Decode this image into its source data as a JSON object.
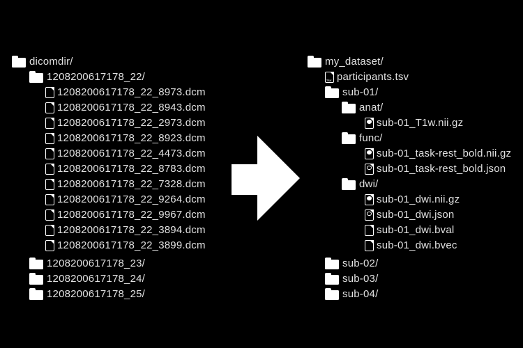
{
  "diagram": {
    "description": "dicom-to-bids-conversion",
    "background_color": "#000000",
    "text_color": "#e0e0e0",
    "icon_color": "#ffffff",
    "arrow": {
      "direction": "right",
      "color": "#ffffff"
    }
  },
  "icons": {
    "tsv_label": "TSV"
  },
  "left_tree": {
    "rows": [
      {
        "label": "dicomdir/",
        "type": "folder",
        "level": 0
      },
      {
        "label": "1208200617178_22/",
        "type": "folder",
        "level": 1
      },
      {
        "label": "1208200617178_22_8973.dcm",
        "type": "file",
        "level": 2
      },
      {
        "label": "1208200617178_22_8943.dcm",
        "type": "file",
        "level": 2
      },
      {
        "label": "1208200617178_22_2973.dcm",
        "type": "file",
        "level": 2
      },
      {
        "label": "1208200617178_22_8923.dcm",
        "type": "file",
        "level": 2
      },
      {
        "label": "1208200617178_22_4473.dcm",
        "type": "file",
        "level": 2
      },
      {
        "label": "1208200617178_22_8783.dcm",
        "type": "file",
        "level": 2
      },
      {
        "label": "1208200617178_22_7328.dcm",
        "type": "file",
        "level": 2
      },
      {
        "label": "1208200617178_22_9264.dcm",
        "type": "file",
        "level": 2
      },
      {
        "label": "1208200617178_22_9967.dcm",
        "type": "file",
        "level": 2
      },
      {
        "label": "1208200617178_22_3894.dcm",
        "type": "file",
        "level": 2
      },
      {
        "label": "1208200617178_22_3899.dcm",
        "type": "file",
        "level": 2
      },
      {
        "label": "1208200617178_23/",
        "type": "folder",
        "level": 1,
        "gap_before": true
      },
      {
        "label": "1208200617178_24/",
        "type": "folder",
        "level": 1
      },
      {
        "label": "1208200617178_25/",
        "type": "folder",
        "level": 1
      }
    ]
  },
  "right_tree": {
    "rows": [
      {
        "label": "my_dataset/",
        "type": "folder",
        "level": 0
      },
      {
        "label": "participants.tsv",
        "type": "file-tsv",
        "level": 1
      },
      {
        "label": "sub-01/",
        "type": "folder",
        "level": 1
      },
      {
        "label": "anat/",
        "type": "folder",
        "level": 2
      },
      {
        "label": "sub-01_T1w.nii.gz",
        "type": "file-nii",
        "level": 3
      },
      {
        "label": "func/",
        "type": "folder",
        "level": 2
      },
      {
        "label": "sub-01_task-rest_bold.nii.gz",
        "type": "file-nii",
        "level": 3
      },
      {
        "label": "sub-01_task-rest_bold.json",
        "type": "file-json",
        "level": 3
      },
      {
        "label": "dwi/",
        "type": "folder",
        "level": 2
      },
      {
        "label": "sub-01_dwi.nii.gz",
        "type": "file-nii",
        "level": 3
      },
      {
        "label": "sub-01_dwi.json",
        "type": "file-json",
        "level": 3
      },
      {
        "label": "sub-01_dwi.bval",
        "type": "file",
        "level": 3
      },
      {
        "label": "sub-01_dwi.bvec",
        "type": "file",
        "level": 3
      },
      {
        "label": "sub-02/",
        "type": "folder",
        "level": 1,
        "gap_before": true
      },
      {
        "label": "sub-03/",
        "type": "folder",
        "level": 1
      },
      {
        "label": "sub-04/",
        "type": "folder",
        "level": 1
      }
    ]
  }
}
